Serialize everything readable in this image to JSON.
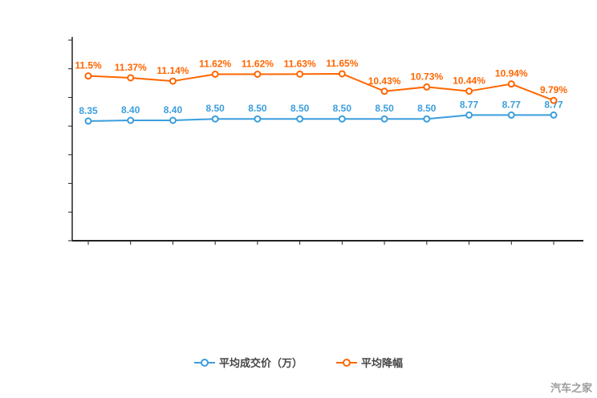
{
  "watermark": "汽车之家",
  "colors": {
    "axis": "#222222",
    "blue": "#3b9edd",
    "orange": "#ff6600",
    "background": "#ffffff"
  },
  "legend": [
    {
      "label": "平均成交价（万）",
      "color": "#3b9edd"
    },
    {
      "label": "平均降幅",
      "color": "#ff6600"
    }
  ],
  "chart_data": {
    "type": "line",
    "title": "",
    "xlabel": "",
    "ylabel": "",
    "ylim": [
      0,
      14
    ],
    "ytick_step": 2,
    "grid": false,
    "legend_position": "bottom-center",
    "xaxis_labels_visible": false,
    "x": [
      1,
      2,
      3,
      4,
      5,
      6,
      7,
      8,
      9,
      10,
      11,
      12
    ],
    "series": [
      {
        "name": "平均成交价（万）",
        "color": "#3b9edd",
        "values": [
          8.35,
          8.4,
          8.4,
          8.5,
          8.5,
          8.5,
          8.5,
          8.5,
          8.5,
          8.77,
          8.77,
          8.77
        ],
        "labels": [
          "8.35",
          "8.40",
          "8.40",
          "8.50",
          "8.50",
          "8.50",
          "8.50",
          "8.50",
          "8.50",
          "8.77",
          "8.77",
          "8.77"
        ]
      },
      {
        "name": "平均降幅",
        "color": "#ff6600",
        "values": [
          11.5,
          11.37,
          11.14,
          11.62,
          11.62,
          11.63,
          11.65,
          10.43,
          10.73,
          10.44,
          10.94,
          9.79
        ],
        "labels": [
          "11.5%",
          "11.37%",
          "11.14%",
          "11.62%",
          "11.62%",
          "11.63%",
          "11.65%",
          "10.43%",
          "10.73%",
          "10.44%",
          "10.94%",
          "9.79%"
        ]
      }
    ]
  }
}
